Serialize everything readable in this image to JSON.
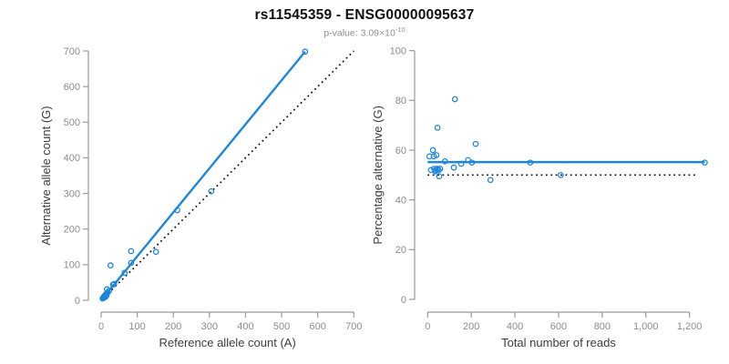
{
  "header": {
    "title": "rs11545359 - ENSG00000095637",
    "p_label": "p-value: ",
    "p_mantissa": "3.09",
    "p_times": "×",
    "p_base": "10",
    "p_exponent": "-10"
  },
  "colors": {
    "accent_blue": "#1E86DB",
    "axis_line": "#999999",
    "tick_label": "#8C8C8C",
    "axis_title": "#3C3C3C",
    "dotted_line": "#111111"
  },
  "chart_data": [
    {
      "type": "scatter",
      "name": "allele-counts-scatter",
      "xlabel": "Reference allele count (A)",
      "ylabel": "Alternative allele count (G)",
      "xlim": [
        0,
        700
      ],
      "ylim": [
        0,
        700
      ],
      "grid": false,
      "legend": "none",
      "xticks": {
        "values": [
          0,
          100,
          200,
          300,
          400,
          500,
          600,
          700
        ],
        "labels": [
          "0",
          "100",
          "200",
          "300",
          "400",
          "500",
          "600",
          "700"
        ]
      },
      "yticks": {
        "values": [
          0,
          100,
          200,
          300,
          400,
          500,
          600,
          700
        ],
        "labels": [
          "0",
          "100",
          "200",
          "300",
          "400",
          "500",
          "600",
          "700"
        ]
      },
      "points": [
        [
          565,
          698
        ],
        [
          305,
          306
        ],
        [
          211,
          253
        ],
        [
          152,
          136
        ],
        [
          83,
          138
        ],
        [
          83,
          105
        ],
        [
          26,
          98
        ],
        [
          65,
          77
        ],
        [
          33,
          44
        ],
        [
          36,
          46
        ],
        [
          16,
          31
        ],
        [
          22,
          27
        ],
        [
          18,
          22
        ],
        [
          14,
          18
        ],
        [
          12,
          15
        ],
        [
          10,
          13
        ],
        [
          9,
          11
        ],
        [
          8,
          10
        ],
        [
          7,
          9
        ],
        [
          6,
          8
        ],
        [
          5,
          6
        ],
        [
          4,
          5
        ],
        [
          11,
          9
        ],
        [
          15,
          13
        ]
      ],
      "lines": [
        {
          "name": "identity-line",
          "style": "dotted",
          "color": "black",
          "x1": 0,
          "y1": 0,
          "x2": 700,
          "y2": 700
        },
        {
          "name": "fit-line",
          "style": "solid",
          "color": "blue",
          "x1": 0,
          "y1": 0,
          "x2": 565,
          "y2": 698
        }
      ]
    },
    {
      "type": "scatter",
      "name": "percentage-vs-reads-scatter",
      "xlabel": "Total number of reads",
      "ylabel": "Percentage alternative (G)",
      "xlim": [
        0,
        1270
      ],
      "ylim": [
        0,
        100
      ],
      "grid": false,
      "legend": "none",
      "xticks": {
        "values": [
          0,
          200,
          400,
          600,
          800,
          1000,
          1200
        ],
        "labels": [
          "0",
          "200",
          "400",
          "600",
          "800",
          "1,000",
          "1,200"
        ]
      },
      "yticks": {
        "values": [
          0,
          20,
          40,
          60,
          80,
          100
        ],
        "labels": [
          "0",
          "20",
          "40",
          "60",
          "80",
          "100"
        ]
      },
      "points": [
        [
          1270,
          55
        ],
        [
          610,
          50
        ],
        [
          470,
          55
        ],
        [
          288,
          48
        ],
        [
          220,
          62.5
        ],
        [
          203,
          55
        ],
        [
          185,
          56
        ],
        [
          154,
          54.5
        ],
        [
          125,
          80.5
        ],
        [
          120,
          53
        ],
        [
          79,
          55.5
        ],
        [
          53,
          49.5
        ],
        [
          57,
          52.5
        ],
        [
          50,
          52
        ],
        [
          44,
          52.5
        ],
        [
          40,
          58
        ],
        [
          38,
          52
        ],
        [
          35,
          51.5
        ],
        [
          30,
          52.5
        ],
        [
          28,
          57.5
        ],
        [
          24,
          60
        ],
        [
          45,
          69
        ],
        [
          8,
          57.5
        ],
        [
          15,
          52
        ]
      ],
      "lines": [
        {
          "name": "reference-50pct-line",
          "style": "dotted",
          "color": "black",
          "x1": 0,
          "y1": 50,
          "x2": 1240,
          "y2": 50
        },
        {
          "name": "mean-percentage-line",
          "style": "solid",
          "color": "blue",
          "x1": 0,
          "y1": 55.2,
          "x2": 1270,
          "y2": 55.2
        }
      ]
    }
  ]
}
